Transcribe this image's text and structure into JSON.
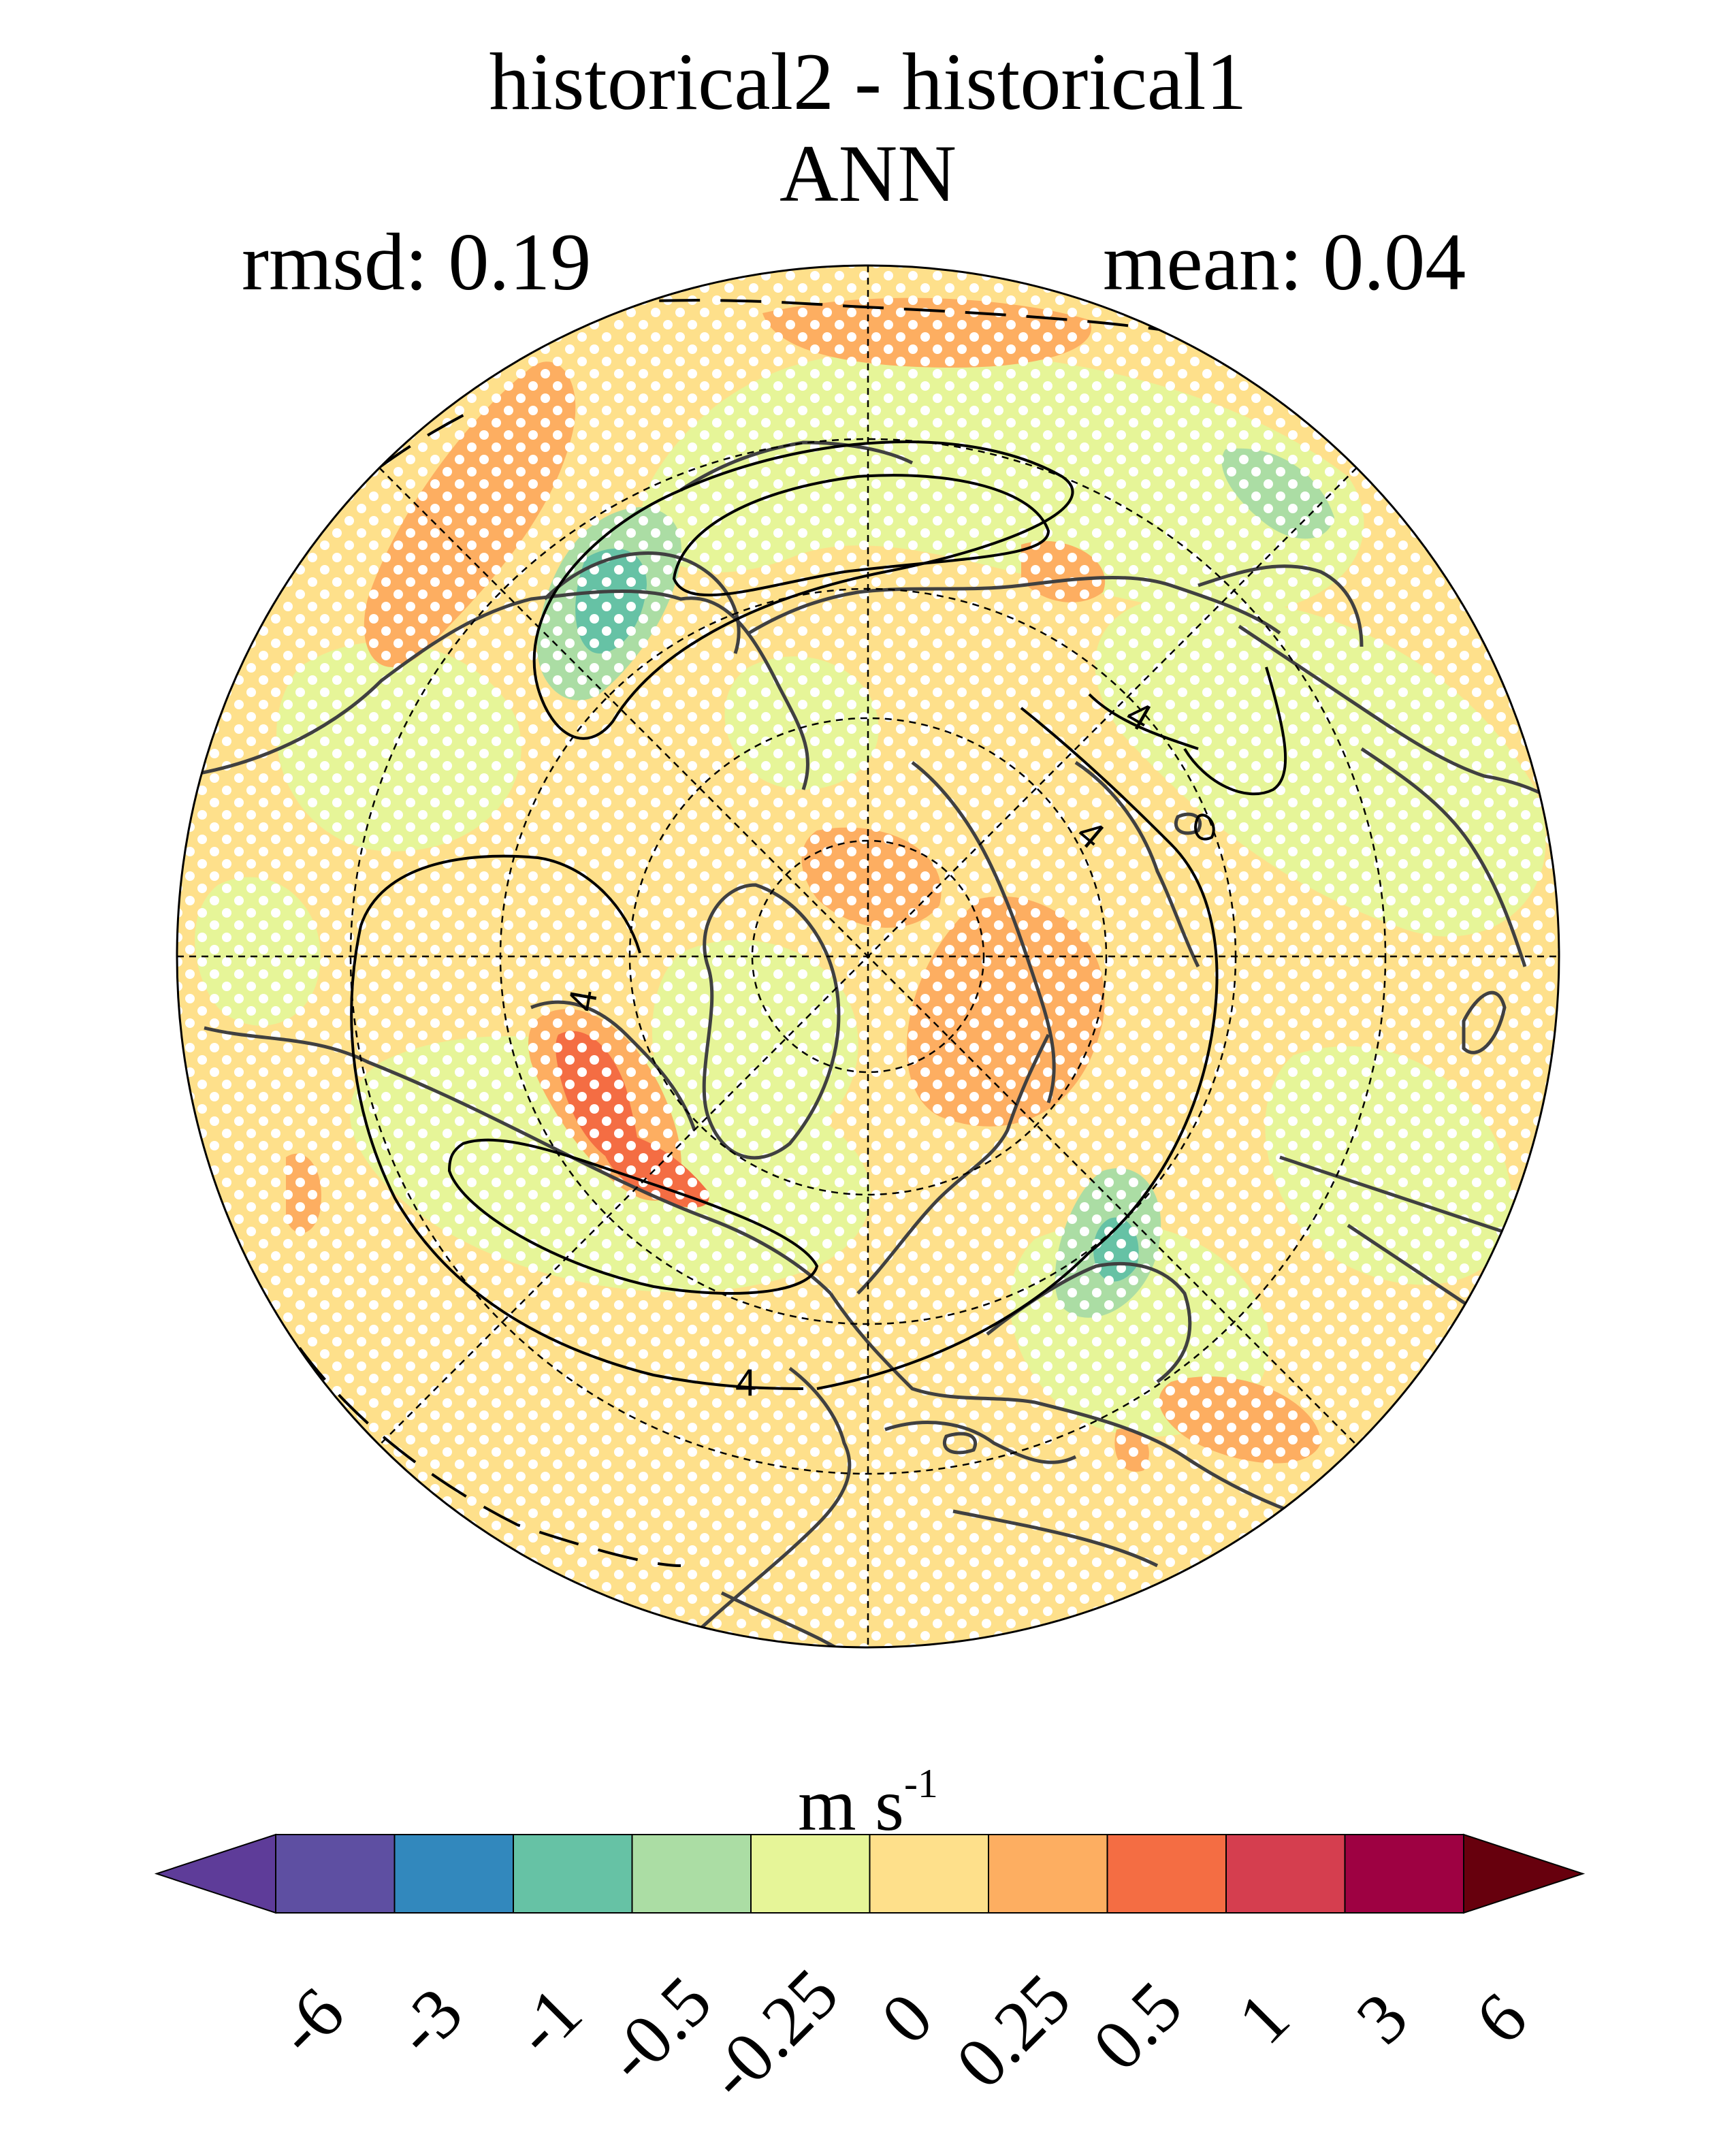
{
  "figure": {
    "title": "historical2 - historical1",
    "season": "ANN",
    "rmsd_label": "rmsd: 0.19",
    "mean_label": "mean: 0.04",
    "projection": "north polar stereographic",
    "contour_label": "4"
  },
  "colorbar": {
    "units_base": "m s",
    "units_exp": "-1",
    "levels": [
      "-6",
      "-3",
      "-1",
      "-0.5",
      "-0.25",
      "0",
      "0.25",
      "0.5",
      "1",
      "3",
      "6"
    ],
    "colors": [
      "#5e3c99",
      "#5e4fa2",
      "#3288bd",
      "#66c2a5",
      "#abdda4",
      "#e6f598",
      "#fee08b",
      "#fdae61",
      "#f46d43",
      "#d53e4f",
      "#9e0142",
      "#67000d"
    ],
    "under_color": "#5e3c99",
    "over_color": "#67000d"
  },
  "colors": {
    "ocean_base": "#fee08b",
    "land_outline": "#404040",
    "stipple": "#ffffff"
  }
}
